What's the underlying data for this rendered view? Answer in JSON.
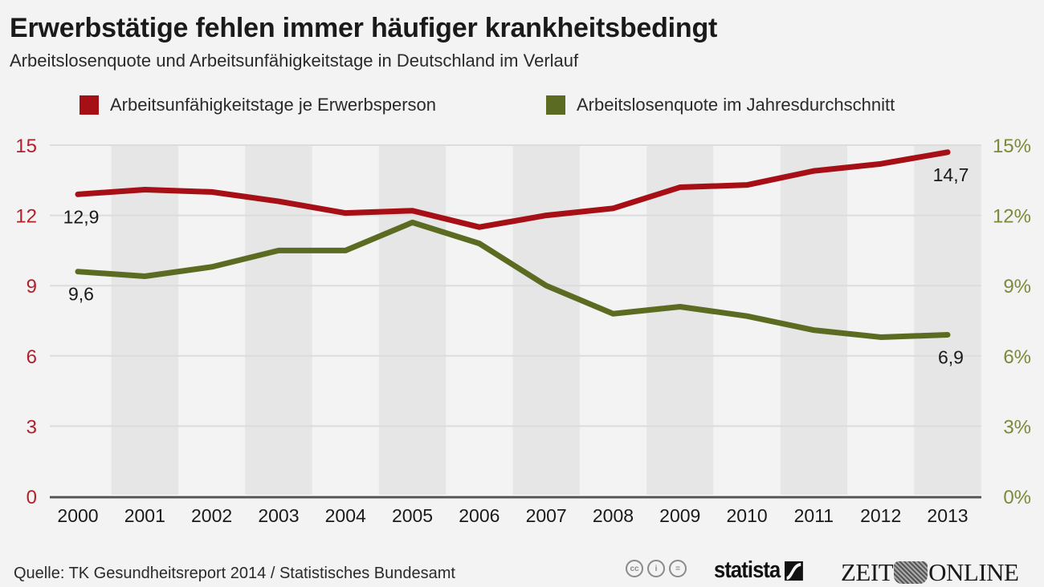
{
  "header": {
    "title": "Erwerbstätige fehlen immer häufiger krankheitsbedingt",
    "subtitle": "Arbeitslosenquote und Arbeitsunfähigkeitstage in Deutschland im Verlauf"
  },
  "footer": {
    "source": "Quelle: TK Gesundheitsreport 2014 / Statistisches Bundesamt",
    "license_icons": [
      "cc-icon",
      "by-icon",
      "nd-icon"
    ],
    "license_glyphs": [
      "cc",
      "i",
      "="
    ],
    "brand_statista": "statista",
    "brand_zeit_left": "ZEIT",
    "brand_zeit_right": "ONLINE"
  },
  "chart_data": {
    "type": "line",
    "title": "Erwerbstätige fehlen immer häufiger krankheitsbedingt",
    "subtitle": "Arbeitslosenquote und Arbeitsunfähigkeitstage in Deutschland im Verlauf",
    "xlabel": "",
    "ylabel": "",
    "x": [
      "2000",
      "2001",
      "2002",
      "2003",
      "2004",
      "2005",
      "2006",
      "2007",
      "2008",
      "2009",
      "2010",
      "2011",
      "2012",
      "2013"
    ],
    "ylim": [
      0,
      15
    ],
    "y_ticks": [
      "0",
      "3",
      "6",
      "9",
      "12",
      "15"
    ],
    "y2lim": [
      0,
      15
    ],
    "y2_ticks": [
      "0%",
      "3%",
      "6%",
      "9%",
      "12%",
      "15%"
    ],
    "grid": true,
    "alternating_column_bands": true,
    "legend_position": "top",
    "colors": {
      "red": "#a50f15",
      "green": "#5c6b22",
      "left_axis": "#b0222a",
      "right_axis": "#7b8a3a",
      "band": "#e6e6e6",
      "background": "#f3f3f3"
    },
    "series": [
      {
        "name": "Arbeitsunfähigkeitstage je Erwerbsperson",
        "axis": "left",
        "color": "#a50f15",
        "values": [
          12.9,
          13.1,
          13.0,
          12.6,
          12.1,
          12.2,
          11.5,
          12.0,
          12.3,
          13.2,
          13.3,
          13.9,
          14.2,
          14.7
        ],
        "labels": [
          {
            "index": 0,
            "text": "12,9",
            "position": "below"
          },
          {
            "index": 13,
            "text": "14,7",
            "position": "below"
          }
        ]
      },
      {
        "name": "Arbeitslosenquote im Jahresdurchschnitt",
        "axis": "right",
        "color": "#5c6b22",
        "values": [
          9.6,
          9.4,
          9.8,
          10.5,
          10.5,
          11.7,
          10.8,
          9.0,
          7.8,
          8.1,
          7.7,
          7.1,
          6.8,
          6.9
        ],
        "labels": [
          {
            "index": 0,
            "text": "9,6",
            "position": "below"
          },
          {
            "index": 13,
            "text": "6,9",
            "position": "below"
          }
        ]
      }
    ]
  }
}
